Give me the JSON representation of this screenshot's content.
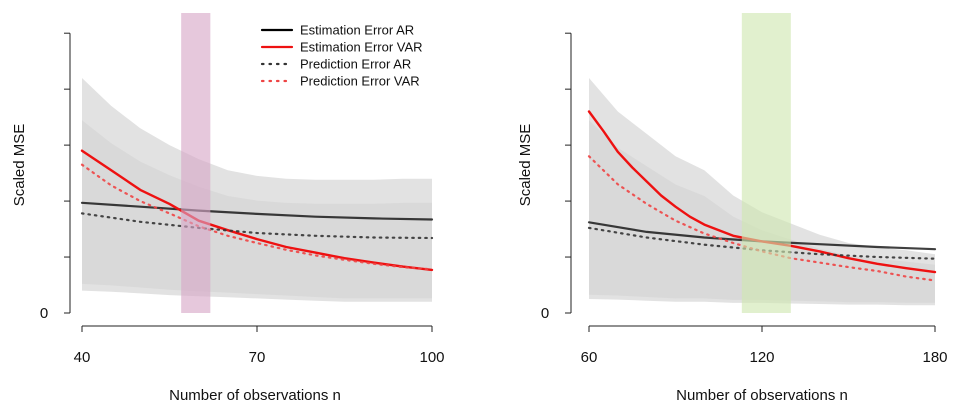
{
  "legend": [
    {
      "label": "Estimation Error AR",
      "color": "#000000",
      "style": "solid"
    },
    {
      "label": "Estimation Error VAR",
      "color": "#ee1111",
      "style": "solid"
    },
    {
      "label": "Prediction Error AR",
      "color": "#333333",
      "style": "dotted"
    },
    {
      "label": "Prediction Error VAR",
      "color": "#ee4444",
      "style": "dotted"
    }
  ],
  "colors": {
    "ar": "#000000",
    "var": "#ee1111",
    "band": "#d8d8d8",
    "highlight_left": "#d7a6c6",
    "highlight_right": "#cfe6b0"
  },
  "chart_data": [
    {
      "type": "line",
      "xlabel": "Number of observations n",
      "ylabel": "Scaled MSE",
      "xlim": [
        40,
        100
      ],
      "ylim": [
        0,
        5.2
      ],
      "xticks": [
        40,
        70,
        100
      ],
      "yticks": [
        0,
        1,
        2,
        3,
        4,
        5
      ],
      "ytick_labels": [
        "0",
        "",
        "",
        "",
        "",
        ""
      ],
      "legend_position": "top-right",
      "highlight": {
        "x_from": 57,
        "x_to": 62
      },
      "series": [
        {
          "name": "Estimation Error AR",
          "x": [
            40,
            50,
            60,
            70,
            80,
            90,
            100
          ],
          "y": [
            1.97,
            1.9,
            1.83,
            1.77,
            1.72,
            1.69,
            1.67
          ]
        },
        {
          "name": "Estimation Error VAR",
          "x": [
            40,
            45,
            50,
            55,
            60,
            65,
            70,
            75,
            80,
            85,
            90,
            95,
            100
          ],
          "y": [
            2.9,
            2.55,
            2.2,
            1.95,
            1.65,
            1.48,
            1.32,
            1.18,
            1.08,
            0.98,
            0.9,
            0.83,
            0.77
          ]
        },
        {
          "name": "Prediction Error AR",
          "x": [
            40,
            50,
            60,
            70,
            80,
            90,
            100
          ],
          "y": [
            1.78,
            1.63,
            1.52,
            1.43,
            1.38,
            1.35,
            1.34
          ]
        },
        {
          "name": "Prediction Error VAR",
          "x": [
            40,
            45,
            50,
            55,
            60,
            65,
            70,
            75,
            80,
            85,
            90,
            95,
            100
          ],
          "y": [
            2.65,
            2.28,
            2.0,
            1.78,
            1.55,
            1.38,
            1.25,
            1.13,
            1.03,
            0.95,
            0.88,
            0.82,
            0.78
          ]
        }
      ],
      "bands": [
        {
          "x": [
            40,
            45,
            50,
            55,
            60,
            65,
            70,
            75,
            80,
            85,
            90,
            95,
            100
          ],
          "upper": [
            4.2,
            3.7,
            3.3,
            3.0,
            2.75,
            2.55,
            2.45,
            2.4,
            2.38,
            2.38,
            2.38,
            2.4,
            2.4
          ],
          "lower": [
            0.4,
            0.38,
            0.35,
            0.32,
            0.3,
            0.28,
            0.26,
            0.24,
            0.22,
            0.2,
            0.2,
            0.2,
            0.2
          ]
        }
      ]
    },
    {
      "type": "line",
      "xlabel": "Number of observations n",
      "ylabel": "Scaled MSE",
      "xlim": [
        60,
        180
      ],
      "ylim": [
        0,
        5.2
      ],
      "xticks": [
        60,
        120,
        180
      ],
      "yticks": [
        0,
        1,
        2,
        3,
        4,
        5
      ],
      "ytick_labels": [
        "0",
        "",
        "",
        "",
        "",
        ""
      ],
      "highlight": {
        "x_from": 113,
        "x_to": 130
      },
      "series": [
        {
          "name": "Estimation Error AR",
          "x": [
            60,
            80,
            100,
            120,
            140,
            160,
            180
          ],
          "y": [
            1.62,
            1.45,
            1.35,
            1.28,
            1.23,
            1.18,
            1.14
          ]
        },
        {
          "name": "Estimation Error VAR",
          "x": [
            60,
            65,
            70,
            75,
            80,
            85,
            90,
            95,
            100,
            110,
            120,
            130,
            140,
            150,
            160,
            170,
            180
          ],
          "y": [
            3.6,
            3.25,
            2.88,
            2.6,
            2.35,
            2.1,
            1.9,
            1.72,
            1.58,
            1.38,
            1.28,
            1.2,
            1.1,
            0.98,
            0.88,
            0.8,
            0.73
          ]
        },
        {
          "name": "Prediction Error AR",
          "x": [
            60,
            80,
            100,
            120,
            140,
            160,
            180
          ],
          "y": [
            1.52,
            1.35,
            1.22,
            1.12,
            1.05,
            1.0,
            0.97
          ]
        },
        {
          "name": "Prediction Error VAR",
          "x": [
            60,
            70,
            80,
            90,
            100,
            110,
            120,
            130,
            140,
            150,
            160,
            170,
            180
          ],
          "y": [
            2.8,
            2.3,
            1.95,
            1.65,
            1.42,
            1.25,
            1.1,
            0.98,
            0.9,
            0.82,
            0.75,
            0.65,
            0.58
          ]
        }
      ],
      "bands": [
        {
          "x": [
            60,
            70,
            80,
            90,
            100,
            110,
            120,
            130,
            140,
            150,
            160,
            170,
            180
          ],
          "upper": [
            4.2,
            3.6,
            3.2,
            2.8,
            2.55,
            2.1,
            1.8,
            1.6,
            1.4,
            1.25,
            1.18,
            1.12,
            1.05
          ],
          "lower": [
            0.25,
            0.24,
            0.22,
            0.2,
            0.2,
            0.18,
            0.18,
            0.17,
            0.16,
            0.15,
            0.15,
            0.14,
            0.14
          ]
        }
      ]
    }
  ]
}
